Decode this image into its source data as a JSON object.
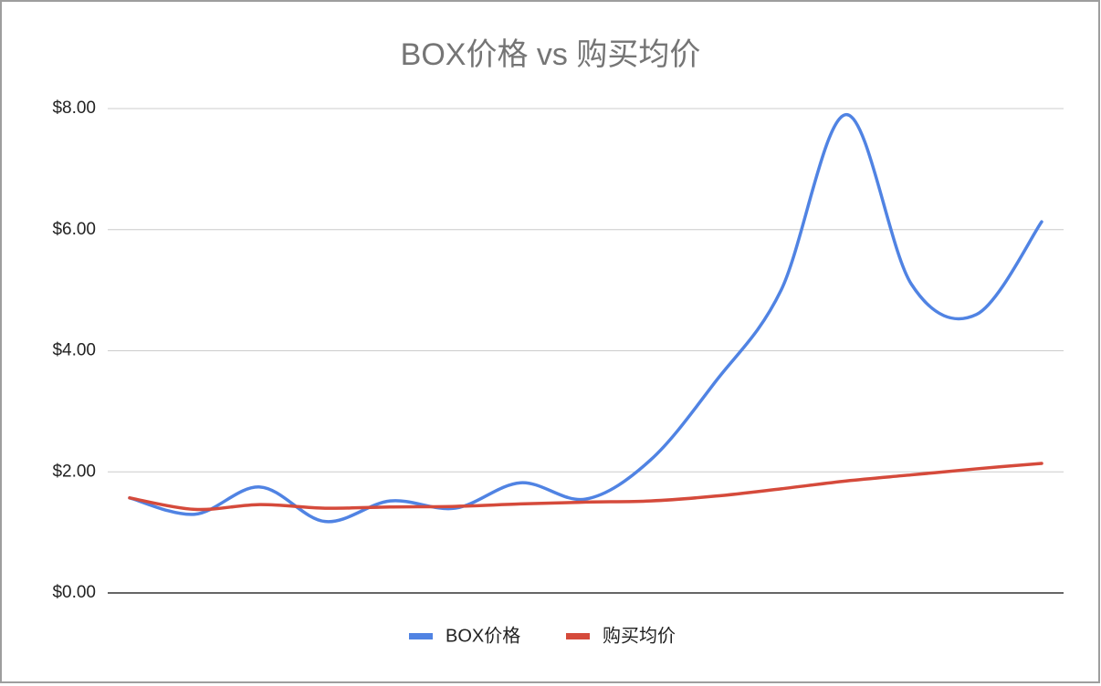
{
  "chart_data": {
    "type": "line",
    "title": "BOX价格 vs 购买均价",
    "categories": [
      null,
      null,
      null,
      null,
      null,
      null,
      null,
      null,
      null,
      null,
      null,
      null,
      null,
      null,
      null
    ],
    "series": [
      {
        "name": "BOX价格",
        "color": "#5083e3",
        "values": [
          1.57,
          1.3,
          1.75,
          1.18,
          1.52,
          1.4,
          1.82,
          1.55,
          2.2,
          3.5,
          5.0,
          7.9,
          5.1,
          4.6,
          6.13
        ]
      },
      {
        "name": "购买均价",
        "color": "#d54a3b",
        "values": [
          1.57,
          1.38,
          1.46,
          1.4,
          1.42,
          1.43,
          1.47,
          1.5,
          1.52,
          1.6,
          1.72,
          1.85,
          1.95,
          2.05,
          2.14
        ]
      }
    ],
    "ylim": [
      0,
      8
    ],
    "yticks": [
      {
        "value": 0,
        "label": "$0.00"
      },
      {
        "value": 2,
        "label": "$2.00"
      },
      {
        "value": 4,
        "label": "$4.00"
      },
      {
        "value": 6,
        "label": "$6.00"
      },
      {
        "value": 8,
        "label": "$8.00"
      }
    ],
    "grid": true,
    "legend": "bottom",
    "smooth": true
  }
}
